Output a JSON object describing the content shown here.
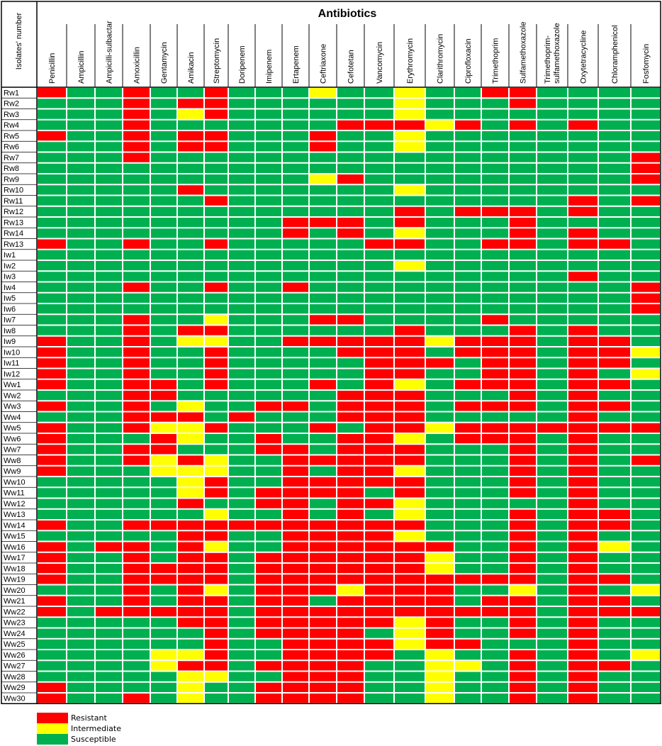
{
  "chart_data": {
    "type": "heatmap",
    "title": "Antibiotics",
    "ylabel": "Isolates' number",
    "antibiotics": [
      "Penicillin",
      "Ampicillin",
      "Ampicilli-sulbactar",
      "Amoxicillin",
      "Gentamycin",
      "Amikacin",
      "Streptomycin",
      "Doripenem",
      "Imipenem",
      "Ertapenem",
      "Ceftriaxone",
      "Cefotetan",
      "Vancomycin",
      "Erythromycin",
      "Clarithromycin",
      "Ciprofloxacin",
      "Trimethoprim",
      "Sulfamethoxazole",
      "Trimethoprim-sulfamethoxazole",
      "Oxytetracycline",
      "Chloramphenicol",
      "Fosfomycin"
    ],
    "isolates": [
      "Rw1",
      "Rw2",
      "Rw3",
      "Rw4",
      "Rw5",
      "Rw6",
      "Rw7",
      "Rw8",
      "Rw9",
      "Rw10",
      "Rw11",
      "Rw12",
      "Rw13",
      "Rw14",
      "Rw13",
      "Iw1",
      "Iw2",
      "Iw3",
      "Iw4",
      "Iw5",
      "Iw6",
      "Iw7",
      "Iw8",
      "Iw9",
      "Iw10",
      "Iw11",
      "Iw12",
      "Ww1",
      "Ww2",
      "Ww3",
      "Ww4",
      "Ww5",
      "Ww6",
      "Ww7",
      "Ww8",
      "Ww9",
      "Ww10",
      "Ww11",
      "Ww12",
      "Ww13",
      "Ww14",
      "Ww15",
      "Ww16",
      "Ww17",
      "Ww18",
      "Ww19",
      "Ww20",
      "Ww21",
      "Ww22",
      "Ww23",
      "Ww24",
      "Ww25",
      "Ww26",
      "Ww27",
      "Ww28",
      "Ww29",
      "Ww30"
    ],
    "matrix": [
      "RSSRSSRSSSISSISSRRSSSS",
      "SSSRSRRSSSSSSISSSRSSSS",
      "SSSRSIRSSSSSSISSSSSSSS",
      "SSSRSSSSSSSRRRIRSRSRSS",
      "RSSRSRRSSSRSSISSSSSSSS",
      "SSSRSRRSSSRSSISSSSSSSS",
      "SSSRSSSSSSSSSSSSSSSSSR",
      "SSSSSSSSSSSSSSSSSSSSSR",
      "SSSSSSSSSSIRSSSSSSSSSR",
      "SSSSSRSSSSSSSISSSSSSSS",
      "SSSSSSRSSSSSSSSSSSSRSR",
      "SSSSSSSSSSSSSRSRRRSRSS",
      "SSSSSSSSSRRRSRSSSRSSSS",
      "SSSSSSSSSRSRSISSSRSRSS",
      "RSSRSSRSSSSSRRSSRRSRRS",
      "SSSSSSSSSSSSSSSSSSSSSS",
      "SSSSSSSSSSSSSISSSSSSSS",
      "SSSSSSSSSSSSSSSSSSSRSS",
      "SSSRSSRSSRSSSSSSSSSSSR",
      "SSSSSSSSSSSSSSSSSSSSSR",
      "SSSSSSSSSSSSSSSSSSSSSR",
      "SSSRSSISSSRRSSSSRSSSSS",
      "SSSRSRRSSSSSSRSSSRSRSS",
      "RSSRSIISSRRRRRIRRRSRRS",
      "RSSRSSRSSSSRRRSRRRSRRI",
      "RSSRSSRSSSSSRRRSRRSRRS",
      "RSSRSSRSSSSSRRSSRRSRSI",
      "RSSRRSRSSSRSRISRRRSRRS",
      "SSSRRSSSSSSRRRSSSRSRSS",
      "RSSRSISSRRSRRRSRRRSRRS",
      "SSSRRRSRSSSRRRSSSSSRSS",
      "RSSRIIRSSSRSRRIRRRRRRR",
      "RSSSRISSRSSRRISRRRSRSS",
      "RSSRRSSSRRSRRRSSSRSRSS",
      "RSSRIRISSRRRRRSSSRSRSR",
      "RSSSIIISSRSRRISSSRSRSS",
      "SSSSSIRSSRRRRRSSSRSRSS",
      "SSSSSIRSRRRRSRSSSRSRSS",
      "SSSSSRSSRRSRRISSSSSRSS",
      "SSSSSSISSRSRSISSSRSRRS",
      "RSSRRRRRRRRRRRSSSRSRRS",
      "SSSSSRRSSRRRRISSSRSRSS",
      "RSRRSRISSRRRRRRSSRSRIS",
      "RSSRSRRSRRRRRRISSRSRSS",
      "RSSRRRRSRRRRRRISSRSRSS",
      "RSSRRRRSRRRRRRRRRRSRRS",
      "SSSRSRISRRRIRRRSSISRSI",
      "RSSRSRRSRRSRRRRSRRSRRS",
      "RSRRRRRSRRRRRRRRRRSRRR",
      "SSSSSRRSRRRRRIRSSRSRSS",
      "SSSSSSRSRRRRSIRSSRSRSS",
      "SSSSSSRSSRRRRIRRSSSRSS",
      "SSSSIIRSSRRRRSISSRSRSI",
      "SSSSIRRSRRRRSSIISRSRRS",
      "SSSSSIISSRRRSSISSRSRSS",
      "RSSSSISSRRRRSSISSRSRSS",
      "RSSRSISSRRRRSSISSRSRSS"
    ],
    "codes": {
      "R": "Resistant",
      "I": "Intermediate",
      "S": "Susceptible"
    },
    "colors": {
      "R": "#ff0000",
      "I": "#ffff00",
      "S": "#00b050"
    },
    "grid": true,
    "legend_position": "bottom-left"
  },
  "legend": [
    {
      "code": "R",
      "label": "Resistant"
    },
    {
      "code": "I",
      "label": "Intermediate"
    },
    {
      "code": "S",
      "label": "Susceptible"
    }
  ]
}
